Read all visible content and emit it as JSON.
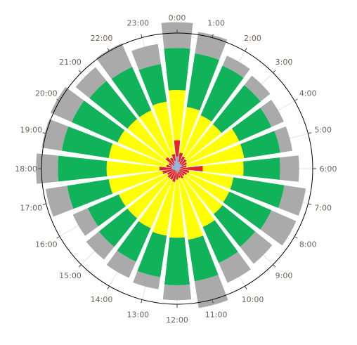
{
  "chart_data": {
    "type": "polar-stacked-bar",
    "categories": [
      "0:00",
      "1:00",
      "2:00",
      "3:00",
      "4:00",
      "5:00",
      "6:00",
      "7:00",
      "8:00",
      "9:00",
      "10:00",
      "11:00",
      "12:00",
      "13:00",
      "14:00",
      "15:00",
      "16:00",
      "17:00",
      "18:00",
      "19:00",
      "20:00",
      "21:00",
      "22:00",
      "23:00"
    ],
    "stack_boundaries_note": "cumulative radial values; outer axis = 100",
    "series": [
      {
        "color": "#7fa7d4",
        "values": [
          9,
          5,
          4,
          4,
          4,
          2,
          3,
          2,
          2,
          2,
          3,
          2,
          3,
          2,
          2,
          2,
          2,
          3,
          4,
          4,
          5,
          3,
          4,
          6
        ]
      },
      {
        "color": "#e0252b",
        "values": [
          21,
          12,
          10,
          9,
          8,
          7,
          19,
          9,
          8,
          7,
          8,
          7,
          8,
          10,
          9,
          9,
          8,
          11,
          13,
          8,
          7,
          11,
          9,
          11
        ]
      },
      {
        "color": "#ffff00",
        "values": [
          58,
          46,
          43,
          42,
          50,
          50,
          49,
          42,
          42,
          43,
          47,
          53,
          51,
          50,
          48,
          47,
          47,
          51,
          52,
          51,
          48,
          47,
          47,
          50
        ]
      },
      {
        "color": "#10b25a",
        "values": [
          89,
          86,
          83,
          79,
          76,
          77,
          76,
          80,
          76,
          74,
          76,
          84,
          86,
          81,
          75,
          74,
          72,
          82,
          88,
          86,
          85,
          83,
          82,
          78
        ]
      },
      {
        "color": "#aaaaaa",
        "values": [
          108,
          102,
          91,
          88,
          86,
          86,
          90,
          96,
          96,
          90,
          92,
          104,
          97,
          90,
          88,
          86,
          84,
          98,
          104,
          101,
          102,
          96,
          101,
          93
        ]
      }
    ],
    "rmax": 100,
    "grid": true
  },
  "colors": {
    "background": "#ffffff",
    "outer_ring": "#000000",
    "gridline": "#e2e2e2",
    "tick_text": "#6f6359"
  }
}
